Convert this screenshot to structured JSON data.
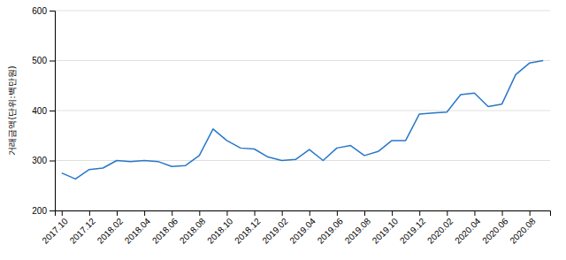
{
  "chart_data": {
    "type": "line",
    "categories": [
      "2017.10",
      null,
      "2017.12",
      null,
      "2018.02",
      null,
      "2018.04",
      null,
      "2018.06",
      null,
      "2018.08",
      null,
      "2018.10",
      null,
      "2018.12",
      null,
      "2019.02",
      null,
      "2019.04",
      null,
      "2019.06",
      null,
      "2019.08",
      null,
      "2019.10",
      null,
      "2019.12",
      null,
      "2020.02",
      null,
      "2020.04",
      null,
      "2020.06",
      null,
      "2020.08",
      null
    ],
    "values": [
      275,
      263,
      282,
      285,
      300,
      298,
      300,
      298,
      288,
      290,
      310,
      363,
      340,
      325,
      323,
      307,
      300,
      302,
      322,
      300,
      325,
      330,
      310,
      318,
      340,
      340,
      393,
      395,
      397,
      432,
      435,
      408,
      413,
      472,
      495,
      500
    ],
    "color": "#2878c8",
    "ylabel": "거래금액(단위:백만원)",
    "ylim": [
      200,
      600
    ],
    "yticks": [
      200,
      300,
      400,
      500,
      600
    ],
    "grid": true
  }
}
